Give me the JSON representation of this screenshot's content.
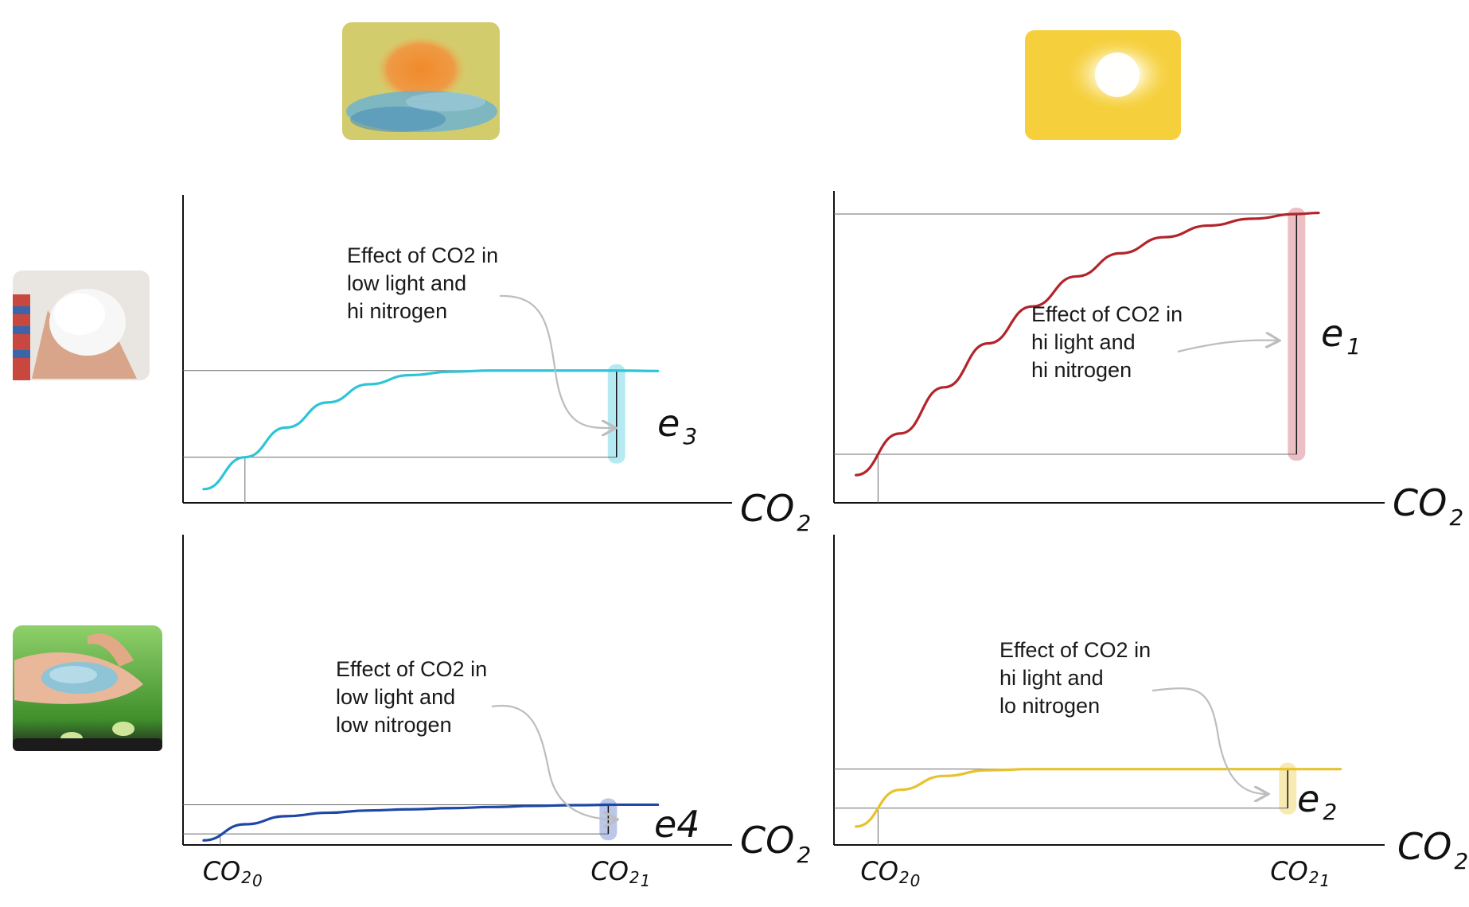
{
  "header_images": [
    {
      "icon": "hazy-sun-photo-icon",
      "meaning": "low light"
    },
    {
      "icon": "bright-sun-photo-icon",
      "meaning": "high light"
    }
  ],
  "row_images": [
    {
      "icon": "white-fertilizer-photo-icon",
      "meaning": "high nitrogen"
    },
    {
      "icon": "blue-fertilizer-seedling-photo-icon",
      "meaning": "low nitrogen"
    }
  ],
  "colors": {
    "axis": "#111111",
    "guide": "#6b6b6b",
    "arrow": "#bdbdbd"
  },
  "chart_data": [
    {
      "type": "line",
      "panel": "top-left",
      "xlabel": "CO",
      "xlabel_sub": "2",
      "annotation": [
        "Effect of CO2 in",
        "low light and",
        "hi nitrogen"
      ],
      "effect_label": "e",
      "effect_sub": "3",
      "color": "#2ec4d8",
      "highlight_color": "#a8e6f0",
      "x": [
        0,
        0.1,
        0.2,
        0.3,
        0.4,
        0.5,
        0.6,
        0.7,
        0.8,
        0.9,
        1.0,
        1.1
      ],
      "y": [
        0.06,
        0.2,
        0.33,
        0.44,
        0.52,
        0.56,
        0.575,
        0.58,
        0.58,
        0.58,
        0.58,
        0.578
      ],
      "co2_0": 0.1,
      "co2_1": 1.0,
      "xlim": [
        -0.05,
        1.28
      ],
      "ylim": [
        0,
        1.35
      ]
    },
    {
      "type": "line",
      "panel": "top-right",
      "xlabel": "CO",
      "xlabel_sub": "2",
      "annotation": [
        "Effect of CO2 in",
        "hi light and",
        "hi nitrogen"
      ],
      "effect_label": "e",
      "effect_sub": "1",
      "color": "#b3242a",
      "highlight_color": "#e8b4b8",
      "x": [
        0,
        0.1,
        0.2,
        0.3,
        0.4,
        0.5,
        0.6,
        0.7,
        0.8,
        0.9,
        1.0,
        1.05
      ],
      "y": [
        0.12,
        0.3,
        0.5,
        0.69,
        0.85,
        0.98,
        1.08,
        1.15,
        1.2,
        1.23,
        1.25,
        1.255
      ],
      "co2_0": 0.05,
      "co2_1": 1.0,
      "xlim": [
        -0.05,
        1.2
      ],
      "ylim": [
        0,
        1.35
      ]
    },
    {
      "type": "line",
      "panel": "bottom-left",
      "xlabel": "CO",
      "xlabel_sub": "2",
      "tick_labels": [
        {
          "main": "CO",
          "sub": "2",
          "idx": "0"
        },
        {
          "main": "CO",
          "sub": "2",
          "idx": "1"
        }
      ],
      "annotation": [
        "Effect of CO2 in",
        "low light and",
        "low nitrogen"
      ],
      "effect_label": "e4",
      "color": "#1f47a6",
      "highlight_color": "#aebde6",
      "x": [
        0,
        0.1,
        0.2,
        0.3,
        0.4,
        0.5,
        0.6,
        0.7,
        0.8,
        0.9,
        1.0,
        1.1
      ],
      "y": [
        0.02,
        0.09,
        0.125,
        0.14,
        0.15,
        0.155,
        0.16,
        0.165,
        0.17,
        0.173,
        0.175,
        0.175
      ],
      "co2_0": 0.04,
      "co2_1": 0.98,
      "xlim": [
        -0.05,
        1.28
      ],
      "ylim": [
        0,
        1.35
      ]
    },
    {
      "type": "line",
      "panel": "bottom-right",
      "xlabel": "CO",
      "xlabel_sub": "2",
      "tick_labels": [
        {
          "main": "CO",
          "sub": "2",
          "idx": "0"
        },
        {
          "main": "CO",
          "sub": "2",
          "idx": "1"
        }
      ],
      "annotation": [
        "Effect of CO2 in",
        "hi light and",
        "lo nitrogen"
      ],
      "effect_label": "e",
      "effect_sub": "2",
      "color": "#e8c22e",
      "highlight_color": "#f6e6a6",
      "x": [
        0,
        0.1,
        0.2,
        0.3,
        0.4,
        0.5,
        0.6,
        0.7,
        0.8,
        0.9,
        1.0,
        1.1
      ],
      "y": [
        0.08,
        0.24,
        0.3,
        0.325,
        0.33,
        0.33,
        0.33,
        0.33,
        0.33,
        0.33,
        0.33,
        0.33
      ],
      "co2_0": 0.05,
      "co2_1": 0.98,
      "xlim": [
        -0.05,
        1.2
      ],
      "ylim": [
        0,
        1.35
      ]
    }
  ]
}
